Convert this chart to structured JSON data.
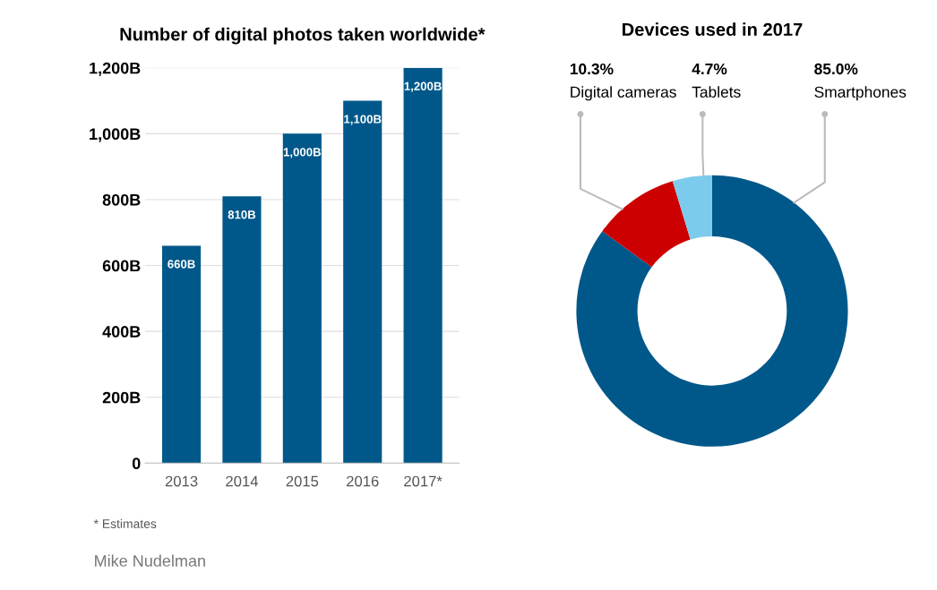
{
  "chart_data": [
    {
      "type": "bar",
      "title": "Number of digital photos taken worldwide*",
      "categories": [
        "2013",
        "2014",
        "2015",
        "2016",
        "2017*"
      ],
      "values": [
        660,
        810,
        1000,
        1100,
        1200
      ],
      "color": "#00588a",
      "value_labels": [
        "660B",
        "810B",
        "1,000B",
        "1,100B",
        "1,200B"
      ],
      "ylim": [
        0,
        1200
      ],
      "yticks": [
        {
          "value": 0,
          "label": "0"
        },
        {
          "value": 200,
          "label": "200B"
        },
        {
          "value": 400,
          "label": "400B"
        },
        {
          "value": 600,
          "label": "600B"
        },
        {
          "value": 800,
          "label": "800B"
        },
        {
          "value": 1000,
          "label": "1,000B"
        },
        {
          "value": 1200,
          "label": "1,200B"
        }
      ],
      "grid": "y",
      "annotations": [
        "* Estimates",
        "Mike Nudelman"
      ]
    },
    {
      "type": "donut",
      "title": "Devices used in 2017",
      "categories": [
        "Smartphones",
        "Digital cameras",
        "Tablets"
      ],
      "values": [
        85.0,
        10.3,
        4.7
      ],
      "colors": [
        "#00588a",
        "#cc0000",
        "#7ccbec"
      ],
      "value_labels": [
        "85.0%",
        "10.3%",
        "4.7%"
      ]
    }
  ]
}
